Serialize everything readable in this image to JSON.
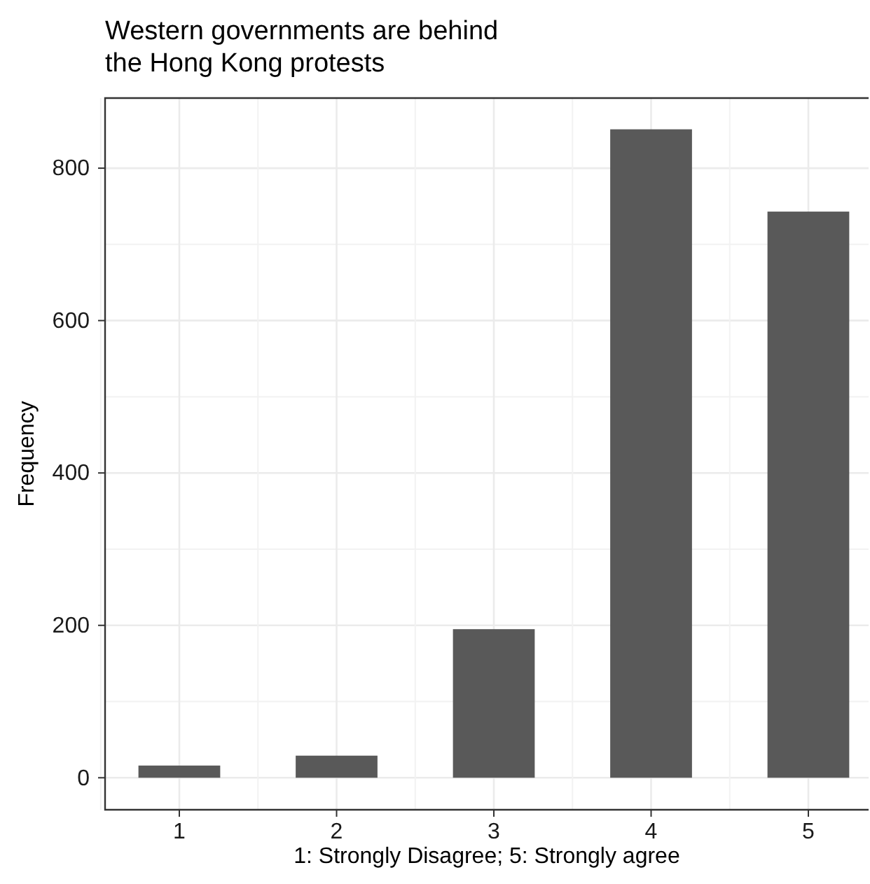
{
  "chart_data": {
    "type": "bar",
    "title": "Western governments are behind\nthe Hong Kong protests",
    "xlabel": "1: Strongly Disagree; 5: Strongly agree",
    "ylabel": "Frequency",
    "categories": [
      "1",
      "2",
      "3",
      "4",
      "5"
    ],
    "values": [
      16,
      29,
      195,
      851,
      743
    ],
    "color": "#595959",
    "ylim": [
      -42,
      892
    ],
    "yticks": [
      0,
      200,
      400,
      600,
      800
    ],
    "grid": true
  }
}
